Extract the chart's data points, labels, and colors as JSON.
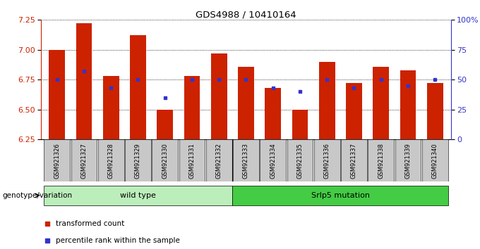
{
  "title": "GDS4988 / 10410164",
  "samples": [
    "GSM921326",
    "GSM921327",
    "GSM921328",
    "GSM921329",
    "GSM921330",
    "GSM921331",
    "GSM921332",
    "GSM921333",
    "GSM921334",
    "GSM921335",
    "GSM921336",
    "GSM921337",
    "GSM921338",
    "GSM921339",
    "GSM921340"
  ],
  "transformed_counts": [
    7.0,
    7.22,
    6.78,
    7.12,
    6.5,
    6.78,
    6.97,
    6.86,
    6.68,
    6.5,
    6.9,
    6.72,
    6.86,
    6.83,
    6.72
  ],
  "percentile_ranks": [
    50,
    57,
    43,
    50,
    35,
    50,
    50,
    50,
    43,
    40,
    50,
    43,
    50,
    45,
    50
  ],
  "ymin": 6.25,
  "ymax": 7.25,
  "yticks": [
    6.25,
    6.5,
    6.75,
    7.0,
    7.25
  ],
  "right_yticks": [
    0,
    25,
    50,
    75,
    100
  ],
  "right_ytick_labels": [
    "0",
    "25",
    "50",
    "75",
    "100%"
  ],
  "bar_color": "#cc2200",
  "dot_color": "#3333cc",
  "wild_type_samples_count": 7,
  "mutation_samples_count": 8,
  "wild_type_label": "wild type",
  "mutation_label": "Srlp5 mutation",
  "genotype_label": "genotype/variation",
  "legend_count_label": "transformed count",
  "legend_pct_label": "percentile rank within the sample",
  "wild_type_color": "#bbeebb",
  "mutation_color": "#44cc44",
  "tick_bg_color": "#c8c8c8",
  "figsize": [
    6.8,
    3.54
  ],
  "dpi": 100
}
